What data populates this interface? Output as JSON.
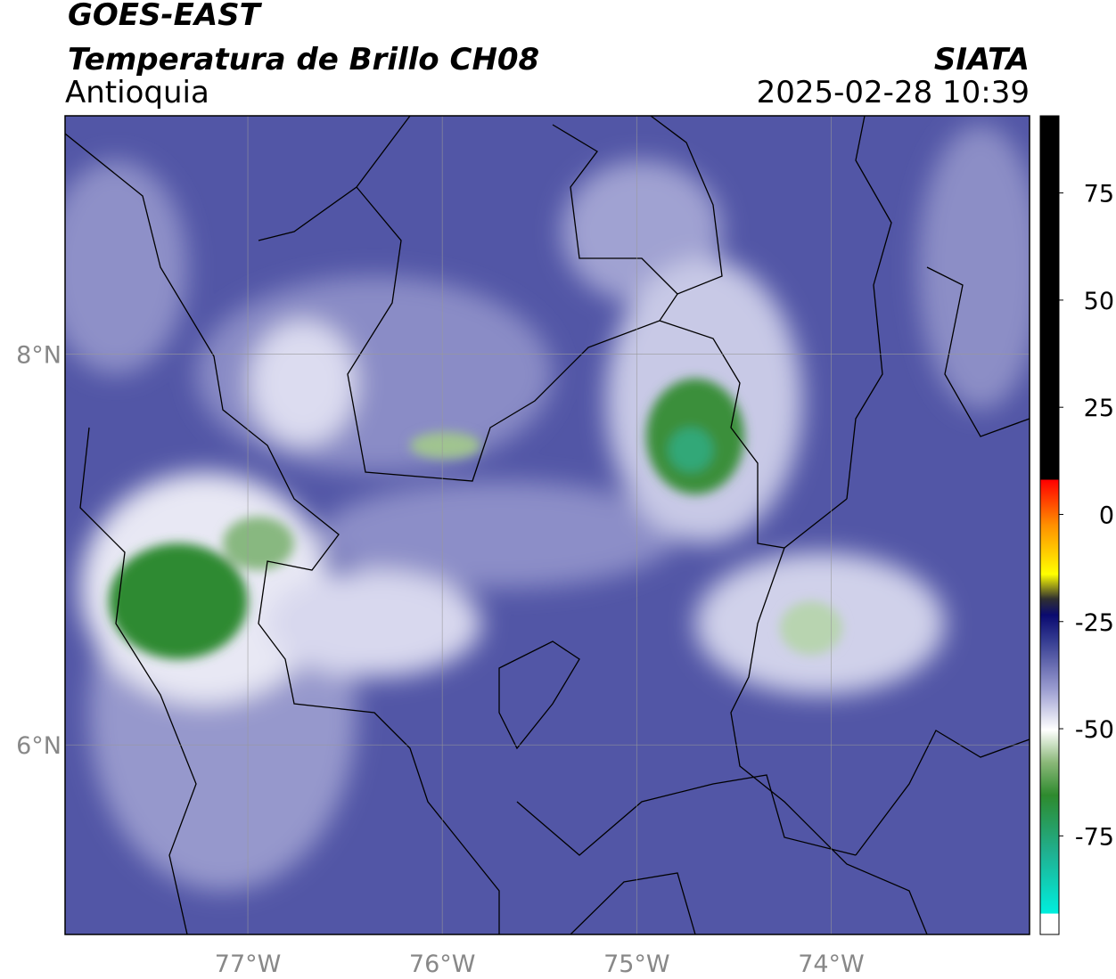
{
  "header": {
    "title": "GOES-EAST",
    "subtitle": "Temperatura de Brillo CH08",
    "region": "Antioquia",
    "source": "SIATA",
    "timestamp": "2025-02-28 10:39"
  },
  "map": {
    "xlim": [
      -77.94,
      -72.98
    ],
    "ylim": [
      5.03,
      9.22
    ],
    "xticks": [
      {
        "value": -77,
        "label": "77°W"
      },
      {
        "value": -76,
        "label": "76°W"
      },
      {
        "value": -75,
        "label": "75°W"
      },
      {
        "value": -74,
        "label": "74°W"
      }
    ],
    "yticks": [
      {
        "value": 6,
        "label": "6°N"
      },
      {
        "value": 8,
        "label": "8°N"
      }
    ],
    "grid": true
  },
  "colorbar": {
    "lim": [
      -98,
      93
    ],
    "ticks": [
      -75,
      -50,
      -25,
      0,
      25,
      50,
      75
    ]
  }
}
